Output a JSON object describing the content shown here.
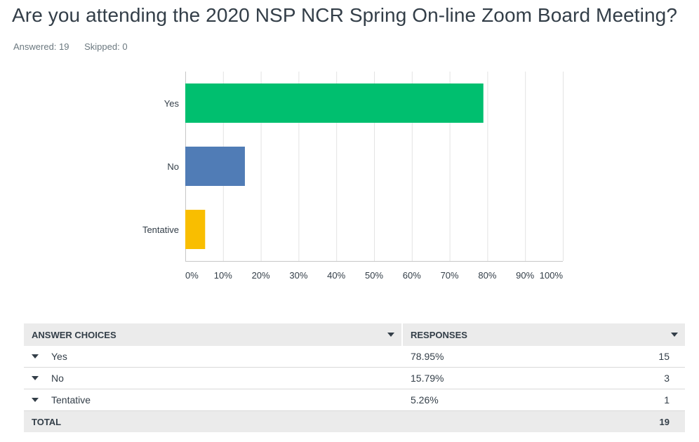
{
  "question": {
    "title": "Are you attending the 2020 NSP NCR Spring On-line Zoom Board Meeting?",
    "answered": "Answered: 19",
    "skipped": "Skipped: 0"
  },
  "chart_data": {
    "type": "bar",
    "orientation": "horizontal",
    "categories": [
      "Yes",
      "No",
      "Tentative"
    ],
    "values": [
      78.95,
      15.79,
      5.26
    ],
    "colors": [
      "#00bf6f",
      "#507cb6",
      "#f9be00"
    ],
    "xlim": [
      0,
      100
    ],
    "x_ticks": [
      "0%",
      "10%",
      "20%",
      "30%",
      "40%",
      "50%",
      "60%",
      "70%",
      "80%",
      "90%",
      "100%"
    ],
    "grid": true,
    "title": "",
    "xlabel": "",
    "ylabel": ""
  },
  "table": {
    "headers": {
      "choices": "ANSWER CHOICES",
      "responses": "RESPONSES"
    },
    "rows": [
      {
        "choice": "Yes",
        "percent": "78.95%",
        "count": "15"
      },
      {
        "choice": "No",
        "percent": "15.79%",
        "count": "3"
      },
      {
        "choice": "Tentative",
        "percent": "5.26%",
        "count": "1"
      }
    ],
    "total": {
      "label": "TOTAL",
      "count": "19"
    }
  }
}
